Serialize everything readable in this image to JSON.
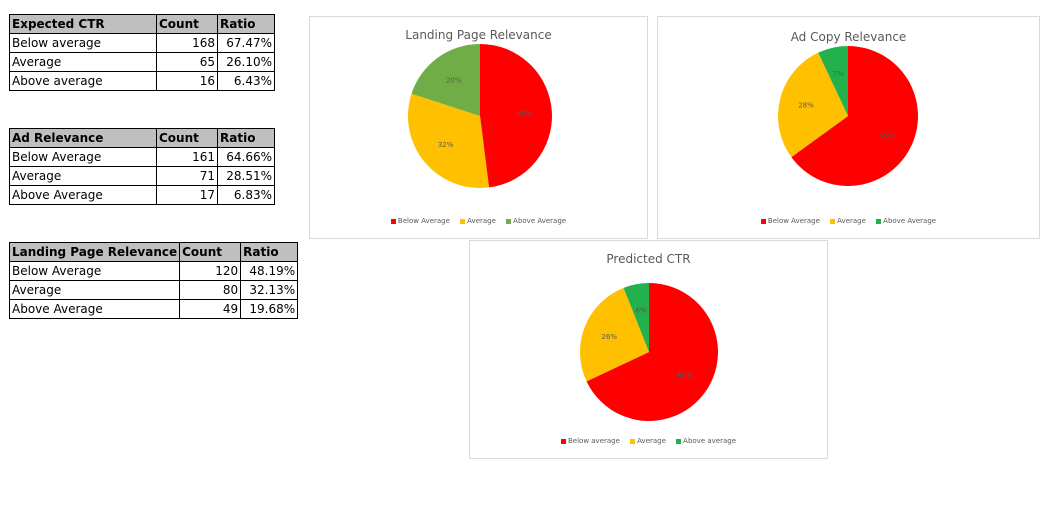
{
  "tables": [
    {
      "headers": [
        "Expected CTR",
        "Count",
        "Ratio"
      ],
      "rows": [
        [
          "Below average",
          "168",
          "67.47%"
        ],
        [
          "Average",
          "65",
          "26.10%"
        ],
        [
          "Above average",
          "16",
          "6.43%"
        ]
      ]
    },
    {
      "headers": [
        "Ad Relevance",
        "Count",
        "Ratio"
      ],
      "rows": [
        [
          "Below Average",
          "161",
          "64.66%"
        ],
        [
          "Average",
          "71",
          "28.51%"
        ],
        [
          "Above Average",
          "17",
          "6.83%"
        ]
      ]
    },
    {
      "headers": [
        "Landing Page Relevance",
        "Count",
        "Ratio"
      ],
      "rows": [
        [
          "Below Average",
          "120",
          "48.19%"
        ],
        [
          "Average",
          "80",
          "32.13%"
        ],
        [
          "Above Average",
          "49",
          "19.68%"
        ]
      ]
    }
  ],
  "colors": {
    "below": "#ff0000",
    "average": "#ffc000",
    "above_landing": "#70ad47",
    "above_other": "#22b14c"
  },
  "chart_data": [
    {
      "type": "pie",
      "title": "Landing Page Relevance",
      "labels": [
        "Below Average",
        "Average",
        "Above Average"
      ],
      "values": [
        48,
        32,
        20
      ],
      "data_labels": [
        "48%",
        "32%",
        "20%"
      ],
      "colors": [
        "#ff0000",
        "#ffc000",
        "#70ad47"
      ],
      "legend": "bottom"
    },
    {
      "type": "pie",
      "title": "Ad Copy Relevance",
      "labels": [
        "Below Average",
        "Average",
        "Above Average"
      ],
      "values": [
        65,
        28,
        7
      ],
      "data_labels": [
        "65%",
        "28%",
        "7%"
      ],
      "colors": [
        "#ff0000",
        "#ffc000",
        "#22b14c"
      ],
      "legend": "bottom"
    },
    {
      "type": "pie",
      "title": "Predicted CTR",
      "labels": [
        "Below average",
        "Average",
        "Above average"
      ],
      "values": [
        68,
        26,
        6
      ],
      "data_labels": [
        "68%",
        "26%",
        "6%"
      ],
      "colors": [
        "#ff0000",
        "#ffc000",
        "#22b14c"
      ],
      "legend": "bottom"
    }
  ]
}
